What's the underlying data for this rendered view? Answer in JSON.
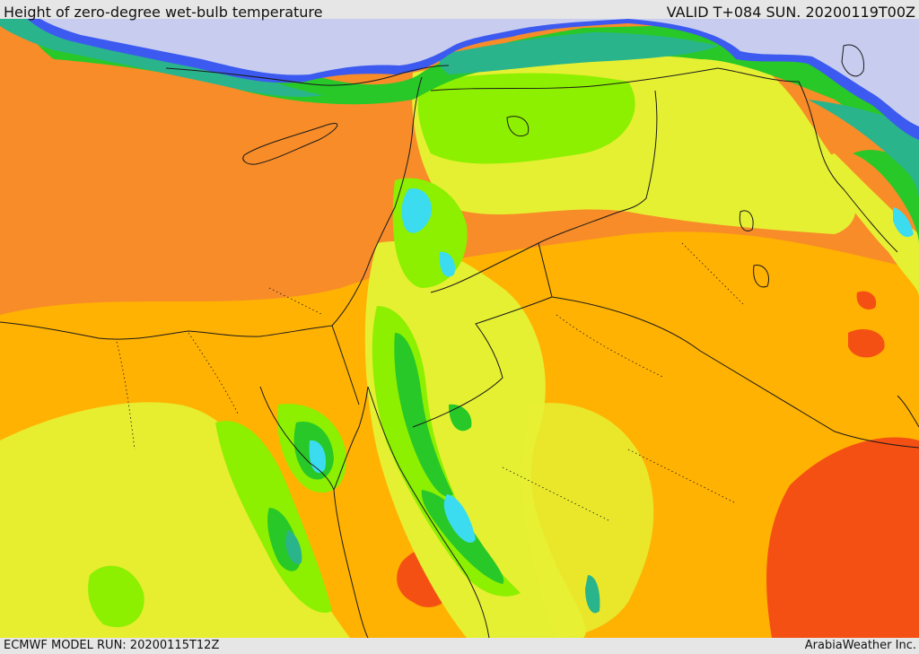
{
  "header": {
    "title": "Height of zero-degree wet-bulb temperature",
    "valid": "VALID T+084 SUN. 20200119T00Z"
  },
  "footer": {
    "model_run": "ECMWF MODEL RUN: 20200115T12Z",
    "credit": "ArabiaWeather Inc."
  },
  "palette": {
    "very_low": "#c8cdf0",
    "low_blue": "#3c5af0",
    "cyan": "#3cdcf0",
    "teal": "#2ab48c",
    "green": "#28c828",
    "lime": "#8cf000",
    "yellow": "#e6f032",
    "amber": "#ffb400",
    "orange": "#f88c28",
    "red_orange": "#f55014",
    "boundary": "#1a1a1a"
  }
}
